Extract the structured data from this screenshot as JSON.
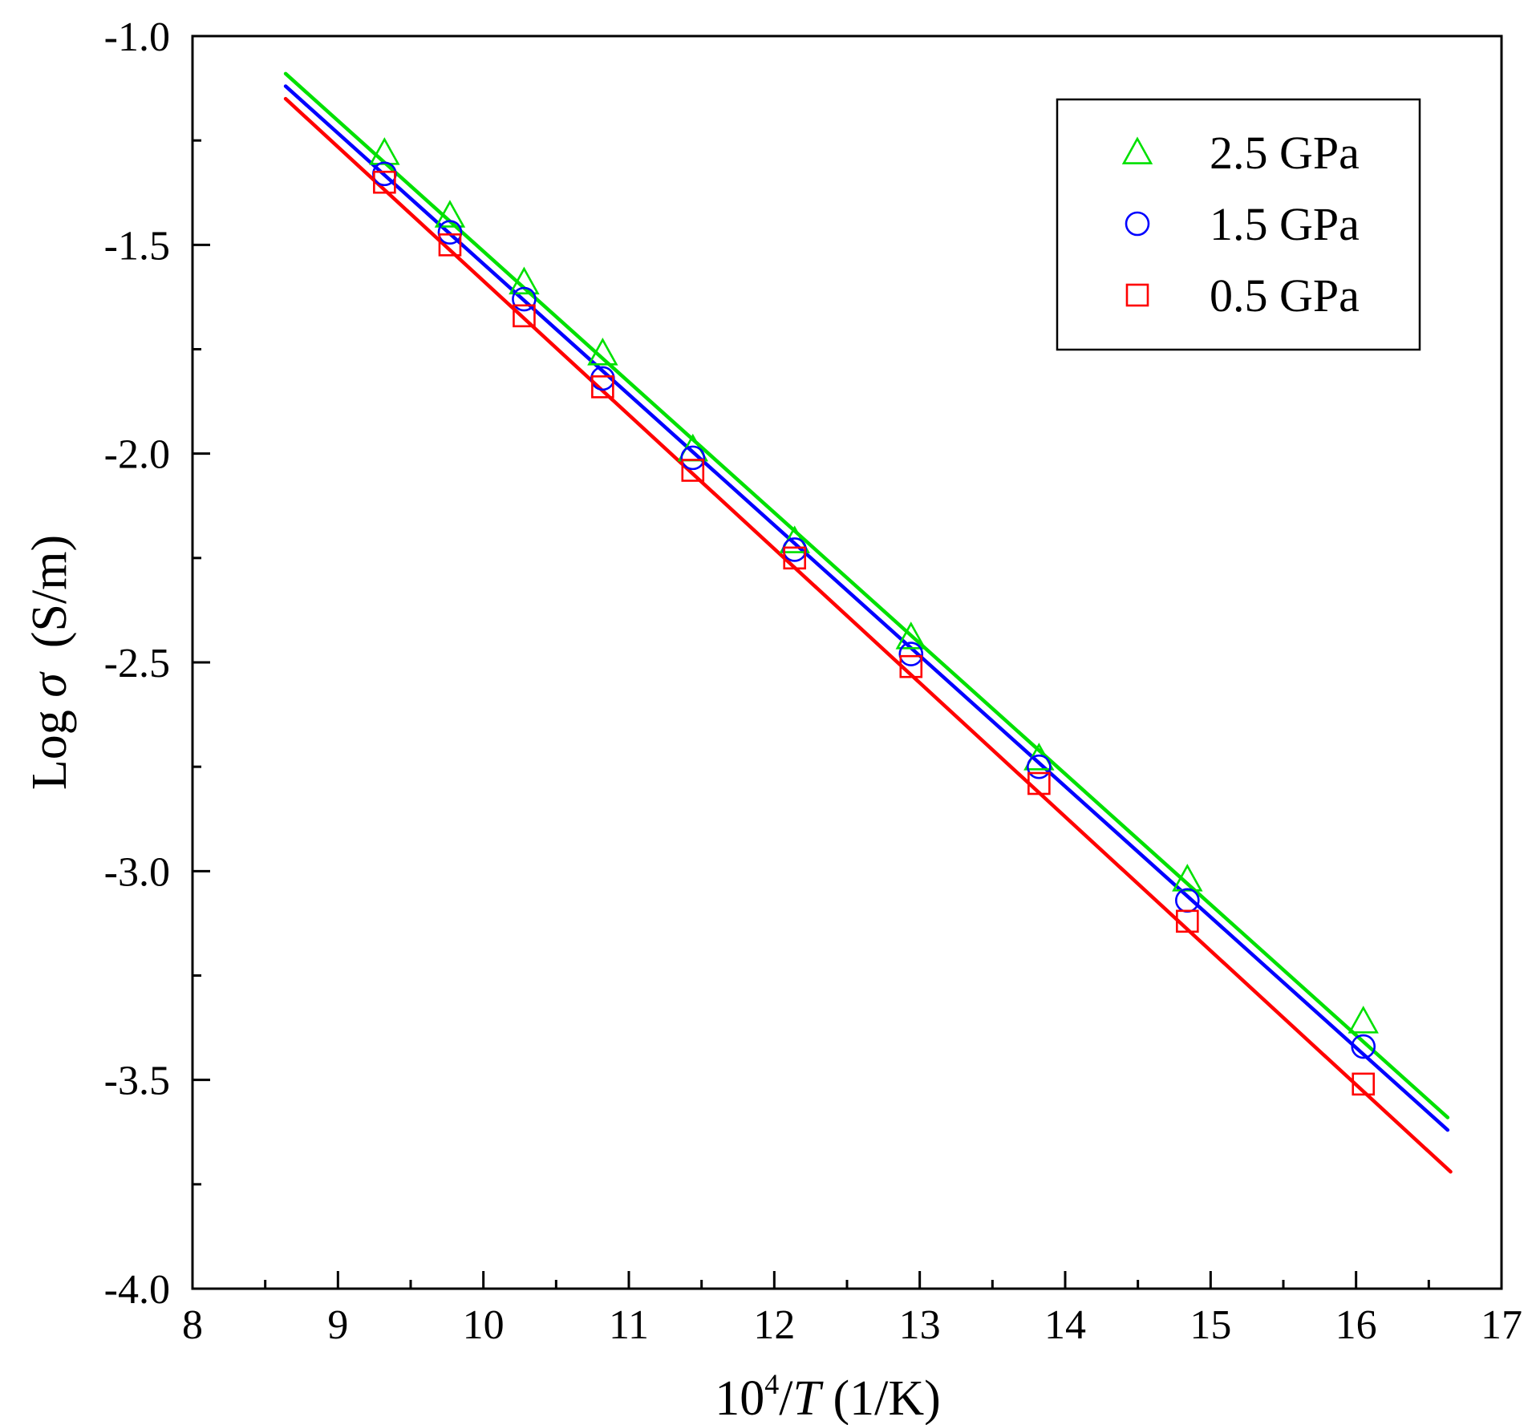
{
  "chart_data": {
    "type": "scatter",
    "title": "",
    "xlabel": {
      "base": "10",
      "exp": "4",
      "slash": "/",
      "var": "T",
      "unit": " (1/K)"
    },
    "ylabel": {
      "prefix": "Log ",
      "sym": "σ",
      "unit": "  (S/m)"
    },
    "xlim": [
      8,
      17
    ],
    "ylim": [
      -4.0,
      -1.0
    ],
    "x_ticks": [
      8,
      9,
      10,
      11,
      12,
      13,
      14,
      15,
      16,
      17
    ],
    "x_tick_labels": [
      "8",
      "9",
      "10",
      "11",
      "12",
      "13",
      "14",
      "15",
      "16",
      "17"
    ],
    "y_ticks": [
      -1.0,
      -1.5,
      -2.0,
      -2.5,
      -3.0,
      -3.5,
      -4.0
    ],
    "y_tick_labels": [
      "-1.0",
      "-1.5",
      "-2.0",
      "-2.5",
      "-3.0",
      "-3.5",
      "-4.0"
    ],
    "grid": false,
    "legend_position": "top-right",
    "series": [
      {
        "name": "2.5 GPa",
        "color": "#00e000",
        "marker": "triangle",
        "x": [
          9.32,
          9.77,
          10.28,
          10.82,
          11.44,
          12.14,
          12.94,
          13.82,
          14.84,
          16.05
        ],
        "y": [
          -1.28,
          -1.43,
          -1.59,
          -1.76,
          -1.99,
          -2.21,
          -2.44,
          -2.73,
          -3.02,
          -3.36
        ],
        "fit": {
          "x": [
            8.64,
            16.63
          ],
          "y": [
            -1.09,
            -3.59
          ]
        }
      },
      {
        "name": "1.5 GPa",
        "color": "#0000ff",
        "marker": "circle",
        "x": [
          9.32,
          9.77,
          10.28,
          10.82,
          11.44,
          12.14,
          12.94,
          13.82,
          14.84,
          16.05
        ],
        "y": [
          -1.33,
          -1.47,
          -1.63,
          -1.82,
          -2.01,
          -2.23,
          -2.48,
          -2.75,
          -3.07,
          -3.42
        ],
        "fit": {
          "x": [
            8.64,
            16.63
          ],
          "y": [
            -1.12,
            -3.62
          ]
        }
      },
      {
        "name": "0.5 GPa",
        "color": "#ff0000",
        "marker": "square",
        "x": [
          9.32,
          9.77,
          10.28,
          10.82,
          11.44,
          12.14,
          12.94,
          13.82,
          14.84,
          16.05
        ],
        "y": [
          -1.35,
          -1.5,
          -1.67,
          -1.84,
          -2.04,
          -2.25,
          -2.51,
          -2.79,
          -3.12,
          -3.51
        ],
        "fit": {
          "x": [
            8.64,
            16.65
          ],
          "y": [
            -1.15,
            -3.72
          ]
        }
      }
    ],
    "legend_order": [
      0,
      1,
      2
    ]
  }
}
